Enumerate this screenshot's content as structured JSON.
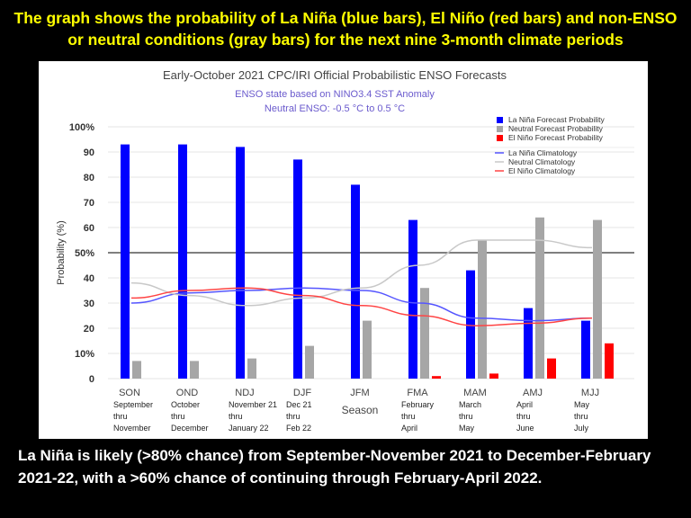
{
  "slide": {
    "header": "The graph shows the probability of La Niña (blue bars), El Niño (red bars) and non-ENSO or neutral conditions (gray bars) for the next nine 3-month climate periods",
    "footer": "La Niña is likely (>80% chance) from September-November 2021 to December-February 2021-22, with a >60% chance of continuing through February-April 2022."
  },
  "chart_data": {
    "type": "bar",
    "title": "Early-October 2021 CPC/IRI Official Probabilistic ENSO Forecasts",
    "subtitle": [
      "ENSO state based on NINO3.4 SST Anomaly",
      "Neutral ENSO: -0.5 °C to 0.5 °C"
    ],
    "xlabel": "Season",
    "ylabel": "Probability (%)",
    "ylim": [
      0,
      100
    ],
    "yticks": [
      "0",
      "10%",
      "20",
      "30",
      "40",
      "50%",
      "60",
      "70",
      "80",
      "90",
      "100%"
    ],
    "reference_line": 50,
    "grid": true,
    "legend_position": "top-right",
    "categories": [
      "SON",
      "OND",
      "NDJ",
      "DJF",
      "JFM",
      "FMA",
      "MAM",
      "AMJ",
      "MJJ"
    ],
    "category_sublabels": [
      [
        "September",
        "thru",
        "November"
      ],
      [
        "October",
        "thru",
        "December"
      ],
      [
        "November 21",
        "thru",
        "January 22"
      ],
      [
        "Dec 21",
        "thru",
        "Feb 22"
      ],
      [],
      [
        "February",
        "thru",
        "April"
      ],
      [
        "March",
        "thru",
        "May"
      ],
      [
        "April",
        "thru",
        "June"
      ],
      [
        "May",
        "thru",
        "July"
      ]
    ],
    "series": [
      {
        "name": "La Niña Forecast Probability",
        "kind": "bar",
        "color": "#0000ff",
        "values": [
          93,
          93,
          92,
          87,
          77,
          63,
          43,
          28,
          23
        ]
      },
      {
        "name": "Neutral Forecast Probability",
        "kind": "bar",
        "color": "#a6a6a6",
        "values": [
          7,
          7,
          8,
          13,
          23,
          36,
          55,
          64,
          63
        ]
      },
      {
        "name": "El Niño Forecast Probability",
        "kind": "bar",
        "color": "#ff0000",
        "values": [
          0,
          0,
          0,
          0,
          0,
          1,
          2,
          8,
          14
        ]
      },
      {
        "name": "La Niña Climatology",
        "kind": "line",
        "color": "#5555ff",
        "values": [
          30,
          34,
          35,
          36,
          35,
          30,
          24,
          23,
          24
        ]
      },
      {
        "name": "Neutral Climatology",
        "kind": "line",
        "color": "#c8c8c8",
        "values": [
          38,
          33,
          29,
          32,
          36,
          45,
          55,
          55,
          52
        ]
      },
      {
        "name": "El Niño Climatology",
        "kind": "line",
        "color": "#ff4444",
        "values": [
          32,
          35,
          36,
          33,
          29,
          25,
          21,
          22,
          24
        ]
      }
    ]
  }
}
